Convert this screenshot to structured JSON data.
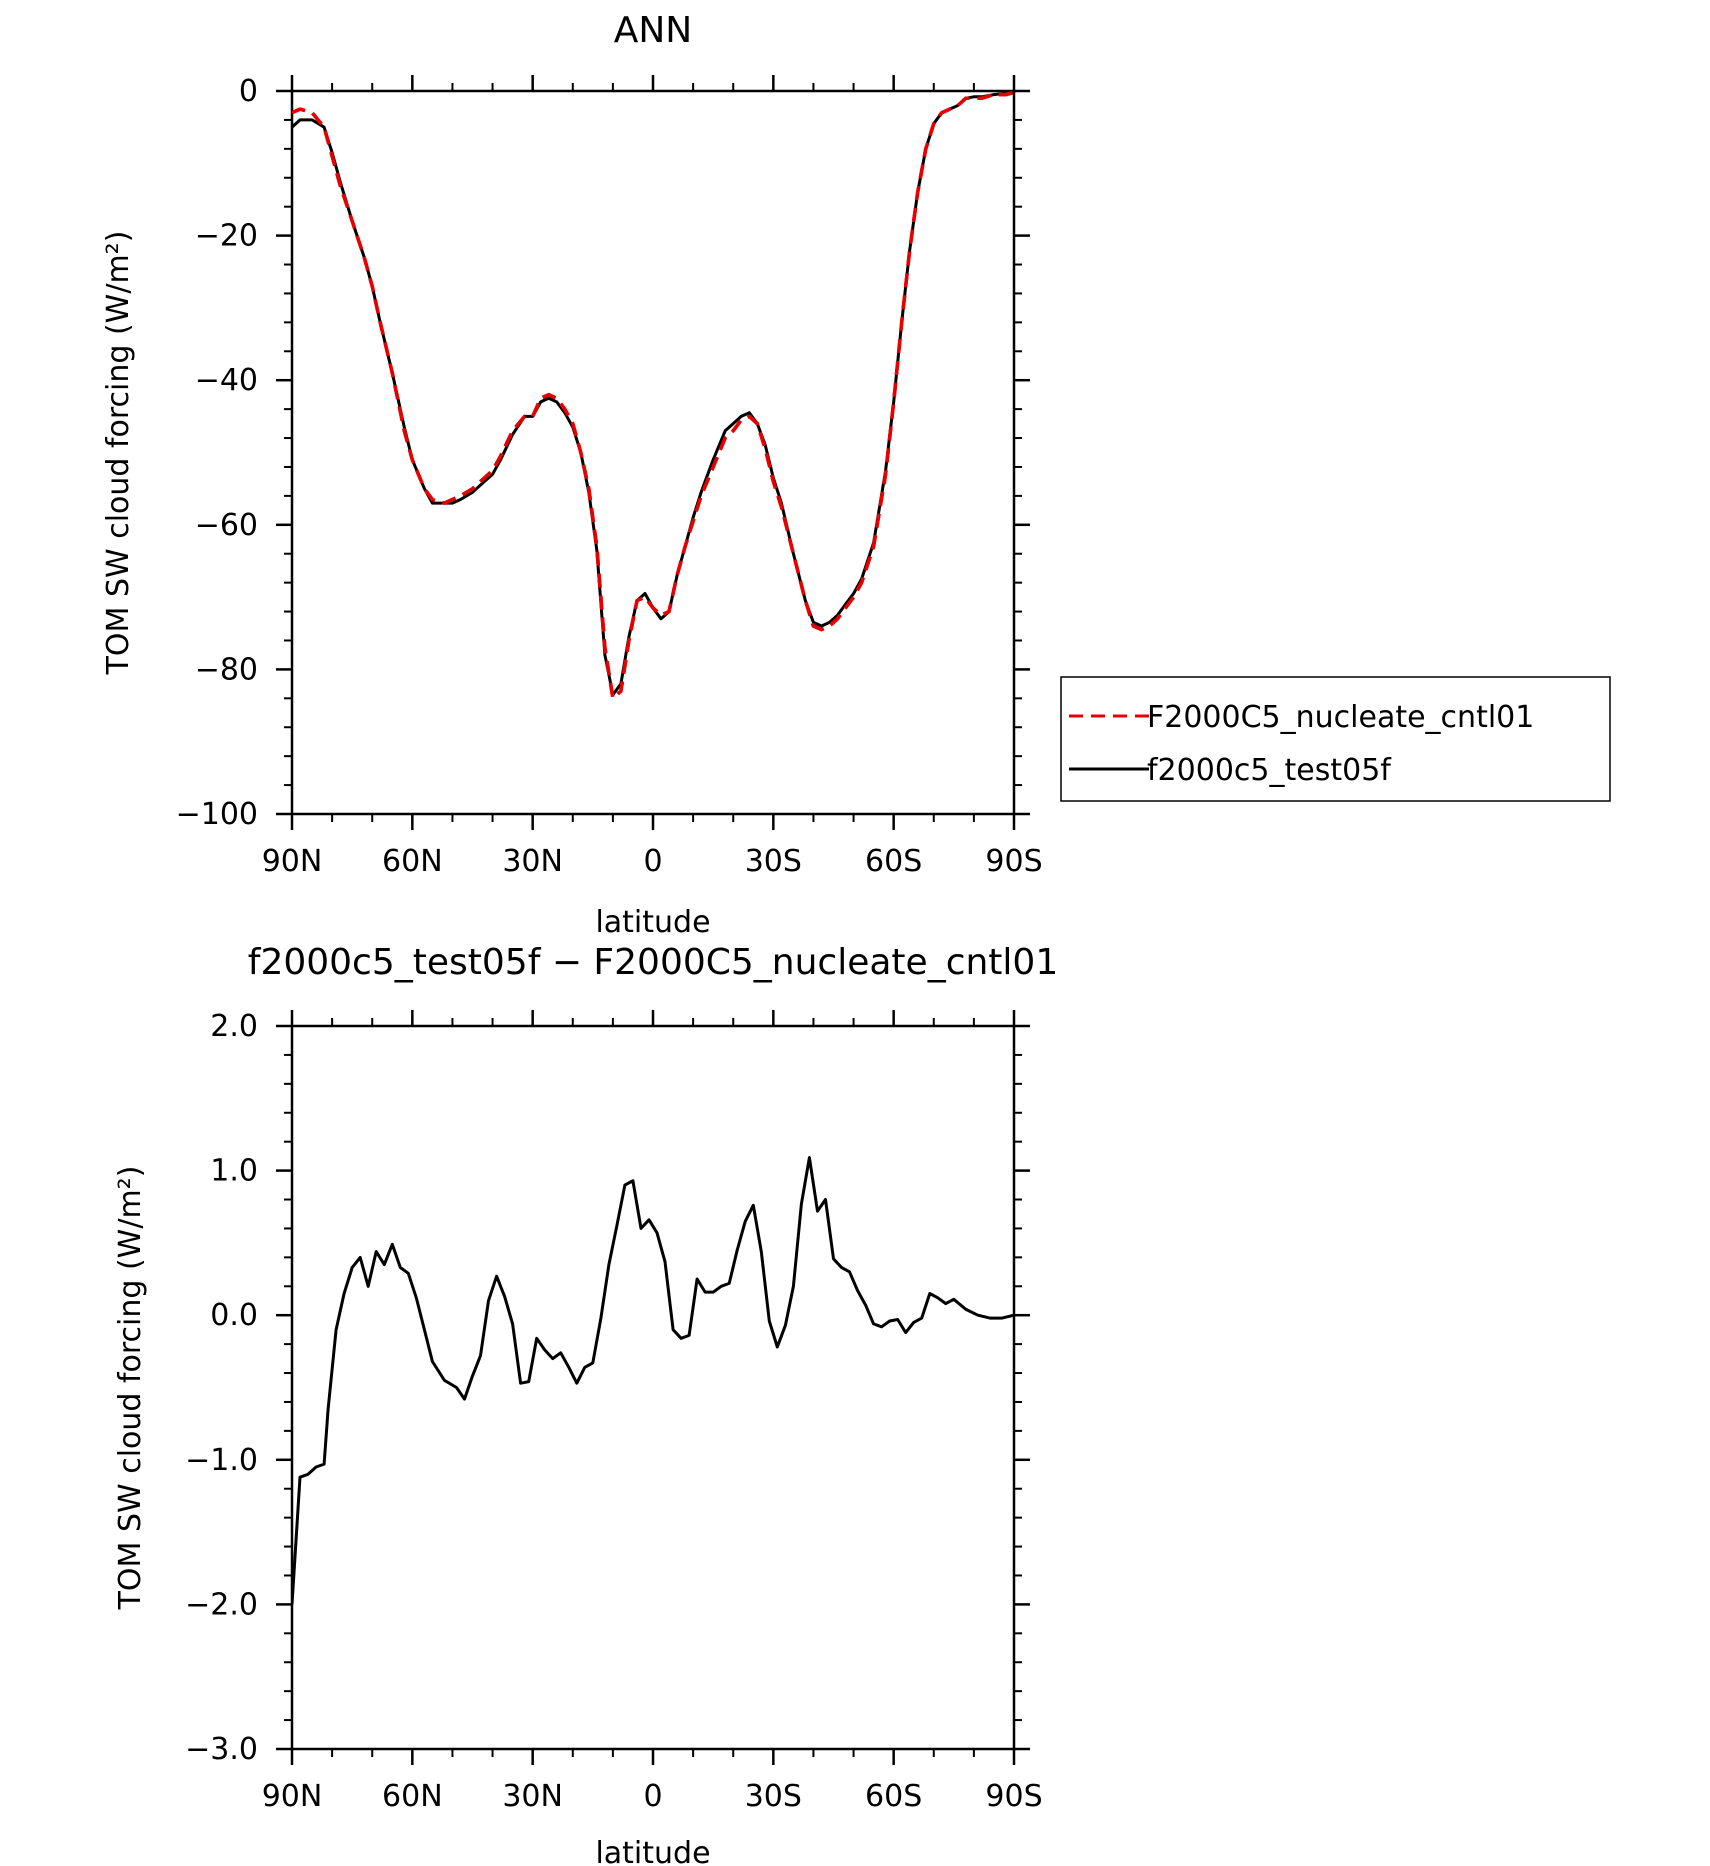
{
  "chart_data": [
    {
      "type": "line",
      "title": "ANN",
      "xlabel": "latitude",
      "ylabel": "TOM SW cloud forcing (W/m²)",
      "xlim": [
        90,
        -90
      ],
      "ylim": [
        -100,
        0
      ],
      "x_ticks": [
        90,
        60,
        30,
        0,
        -30,
        -60,
        -90
      ],
      "x_tick_labels": [
        "90N",
        "60N",
        "30N",
        "0",
        "30S",
        "60S",
        "90S"
      ],
      "y_ticks": [
        0,
        -20,
        -40,
        -60,
        -80,
        -100
      ],
      "y_tick_labels": [
        "0",
        "−20",
        "−40",
        "−60",
        "−80",
        "−100"
      ],
      "grid": false,
      "legend_position": "right",
      "series": [
        {
          "name": "F2000C5_nucleate_cntl01",
          "color": "#e60000",
          "dash": true,
          "x": [
            90,
            88,
            85,
            82,
            80,
            78,
            75,
            72,
            70,
            68,
            65,
            62,
            60,
            57,
            55,
            52,
            50,
            48,
            45,
            42,
            40,
            38,
            35,
            32,
            30,
            28,
            26,
            24,
            22,
            20,
            18,
            16,
            14,
            12,
            10,
            8,
            6,
            4,
            2,
            0,
            -2,
            -4,
            -6,
            -8,
            -10,
            -12,
            -15,
            -18,
            -20,
            -22,
            -24,
            -26,
            -28,
            -30,
            -32,
            -35,
            -38,
            -40,
            -42,
            -44,
            -46,
            -48,
            -50,
            -52,
            -55,
            -58,
            -60,
            -62,
            -64,
            -66,
            -68,
            -70,
            -72,
            -74,
            -76,
            -78,
            -80,
            -82,
            -85,
            -88,
            -90
          ],
          "y": [
            -3,
            -2.5,
            -3,
            -5,
            -9,
            -13,
            -18,
            -23,
            -27,
            -32,
            -39,
            -47,
            -51,
            -55,
            -56.5,
            -57,
            -56.5,
            -56,
            -55,
            -53.5,
            -52.5,
            -50.5,
            -47,
            -45,
            -45,
            -42.5,
            -42,
            -42.5,
            -44,
            -46,
            -50,
            -55,
            -63,
            -77,
            -84,
            -83,
            -76,
            -70.5,
            -70,
            -71.5,
            -72.5,
            -72,
            -67,
            -63,
            -59.5,
            -56,
            -52,
            -48,
            -47,
            -45.5,
            -45,
            -46,
            -49.5,
            -54,
            -57.5,
            -64,
            -70.5,
            -74,
            -74.5,
            -74,
            -73,
            -71.5,
            -70,
            -68,
            -63,
            -53,
            -43,
            -32,
            -22,
            -14,
            -8,
            -4.5,
            -3,
            -2.5,
            -2,
            -1,
            -1,
            -1,
            -0.5,
            -0.5,
            -0.2
          ]
        },
        {
          "name": "f2000c5_test05f",
          "color": "#000000",
          "dash": false,
          "x": [
            90,
            88,
            85,
            82,
            80,
            78,
            75,
            72,
            70,
            68,
            65,
            62,
            60,
            57,
            55,
            52,
            50,
            48,
            45,
            42,
            40,
            38,
            35,
            32,
            30,
            28,
            26,
            24,
            22,
            20,
            18,
            16,
            14,
            12,
            10,
            8,
            6,
            4,
            2,
            0,
            -2,
            -4,
            -6,
            -8,
            -10,
            -12,
            -15,
            -18,
            -20,
            -22,
            -24,
            -26,
            -28,
            -30,
            -32,
            -35,
            -38,
            -40,
            -42,
            -44,
            -46,
            -48,
            -50,
            -52,
            -55,
            -58,
            -60,
            -62,
            -64,
            -66,
            -68,
            -70,
            -72,
            -74,
            -76,
            -78,
            -80,
            -82,
            -85,
            -88,
            -90
          ],
          "y": [
            -5,
            -4,
            -4,
            -5,
            -8.5,
            -12.5,
            -18,
            -23,
            -27,
            -32,
            -39,
            -46.5,
            -51,
            -55,
            -57,
            -57,
            -57,
            -56.5,
            -55.5,
            -54,
            -53,
            -51,
            -47.5,
            -45,
            -45,
            -43,
            -42.5,
            -43,
            -44.5,
            -46.5,
            -50,
            -55.5,
            -63.5,
            -78,
            -83.5,
            -82,
            -75.5,
            -70.5,
            -69.5,
            -71.5,
            -73,
            -72,
            -67,
            -63,
            -59,
            -55.5,
            -51,
            -47,
            -46,
            -45,
            -44.5,
            -46,
            -49,
            -53.5,
            -57,
            -64,
            -70.5,
            -73.5,
            -74,
            -73.5,
            -72.5,
            -71,
            -69.5,
            -67.5,
            -62.5,
            -52.5,
            -43,
            -32,
            -22,
            -14,
            -8,
            -4.5,
            -3,
            -2.5,
            -2,
            -1,
            -0.8,
            -0.8,
            -0.5,
            -0.3,
            -0.1
          ]
        }
      ]
    },
    {
      "type": "line",
      "title": "f2000c5_test05f − F2000C5_nucleate_cntl01",
      "xlabel": "latitude",
      "ylabel": "TOM SW cloud forcing (W/m²)",
      "xlim": [
        90,
        -90
      ],
      "ylim": [
        -3.0,
        2.0
      ],
      "x_ticks": [
        90,
        60,
        30,
        0,
        -30,
        -60,
        -90
      ],
      "x_tick_labels": [
        "90N",
        "60N",
        "30N",
        "0",
        "30S",
        "60S",
        "90S"
      ],
      "y_ticks": [
        2.0,
        1.0,
        0.0,
        -1.0,
        -2.0,
        -3.0
      ],
      "y_tick_labels": [
        "2.0",
        "1.0",
        "0.0",
        "−1.0",
        "−2.0",
        "−3.0"
      ],
      "grid": false,
      "series": [
        {
          "color": "#000000",
          "x": [
            90,
            88,
            86,
            84,
            82,
            81,
            79,
            77,
            75,
            73,
            71,
            69,
            67,
            65,
            63,
            61,
            59,
            57,
            55,
            52,
            49,
            47,
            45,
            43,
            41,
            39,
            37,
            35,
            33,
            31,
            29,
            27,
            25,
            23,
            21,
            19,
            17,
            15,
            13,
            11,
            9,
            7,
            5,
            3,
            1,
            -1,
            -3,
            -5,
            -7,
            -9,
            -11,
            -13,
            -15,
            -17,
            -19,
            -21,
            -23,
            -25,
            -27,
            -29,
            -31,
            -33,
            -35,
            -37,
            -39,
            -41,
            -43,
            -45,
            -47,
            -49,
            -51,
            -53,
            -55,
            -57,
            -59,
            -61,
            -63,
            -65,
            -67,
            -69,
            -71,
            -73,
            -75,
            -78,
            -81,
            -84,
            -87,
            -90
          ],
          "y": [
            -2.0,
            -1.12,
            -1.1,
            -1.05,
            -1.03,
            -0.65,
            -0.1,
            0.15,
            0.33,
            0.4,
            0.2,
            0.44,
            0.35,
            0.49,
            0.33,
            0.29,
            0.12,
            -0.1,
            -0.32,
            -0.45,
            -0.5,
            -0.58,
            -0.42,
            -0.28,
            0.1,
            0.27,
            0.13,
            -0.06,
            -0.47,
            -0.46,
            -0.16,
            -0.24,
            -0.3,
            -0.26,
            -0.36,
            -0.47,
            -0.36,
            -0.33,
            -0.02,
            0.35,
            0.62,
            0.9,
            0.93,
            0.6,
            0.66,
            0.57,
            0.37,
            -0.1,
            -0.16,
            -0.14,
            0.25,
            0.16,
            0.16,
            0.2,
            0.22,
            0.45,
            0.65,
            0.76,
            0.44,
            -0.04,
            -0.22,
            -0.07,
            0.2,
            0.77,
            1.09,
            0.72,
            0.8,
            0.39,
            0.33,
            0.3,
            0.17,
            0.07,
            -0.06,
            -0.08,
            -0.04,
            -0.03,
            -0.12,
            -0.05,
            -0.02,
            0.15,
            0.12,
            0.08,
            0.11,
            0.04,
            0.0,
            -0.02,
            -0.02,
            0.0
          ]
        }
      ]
    }
  ]
}
